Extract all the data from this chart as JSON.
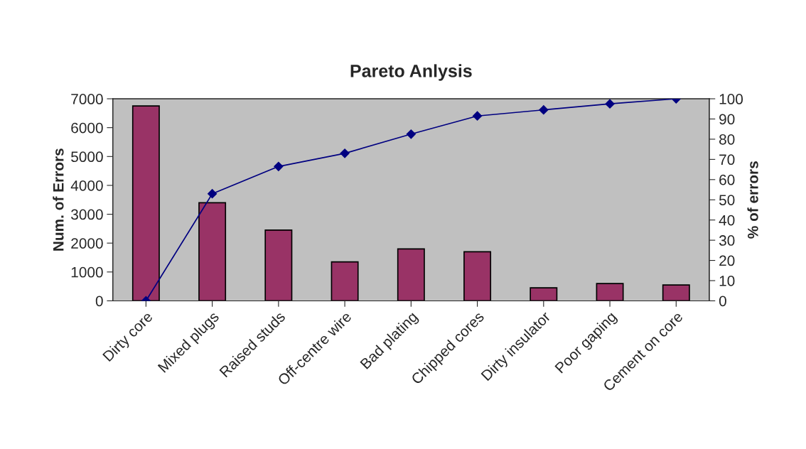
{
  "chart_data": {
    "type": "bar",
    "title": "Pareto Anlysis",
    "ylabel": "Num. of Errors",
    "y2label": "% of errors",
    "categories": [
      "Dirty core",
      "Mixed plugs",
      "Raised studs",
      "Off-centre wire",
      "Bad plating",
      "Chipped cores",
      "Dirty insulator",
      "Poor gaping",
      "Cement on core"
    ],
    "series": [
      {
        "color": "#993366",
        "values": [
          6750,
          3400,
          2450,
          1350,
          1800,
          1700,
          450,
          600,
          550
        ]
      },
      {
        "type": "line",
        "axis": "y2",
        "color": "#000080",
        "marker": "diamond",
        "values": [
          0,
          53,
          66.5,
          73,
          82.5,
          91.5,
          94.5,
          97.5,
          100
        ]
      }
    ],
    "ylim": [
      0,
      7000
    ],
    "yticks": [
      0,
      1000,
      2000,
      3000,
      4000,
      5000,
      6000,
      7000
    ],
    "y2lim": [
      0,
      100
    ],
    "y2ticks": [
      0,
      10,
      20,
      30,
      40,
      50,
      60,
      70,
      80,
      90,
      100
    ],
    "grid": false,
    "legend": false
  }
}
